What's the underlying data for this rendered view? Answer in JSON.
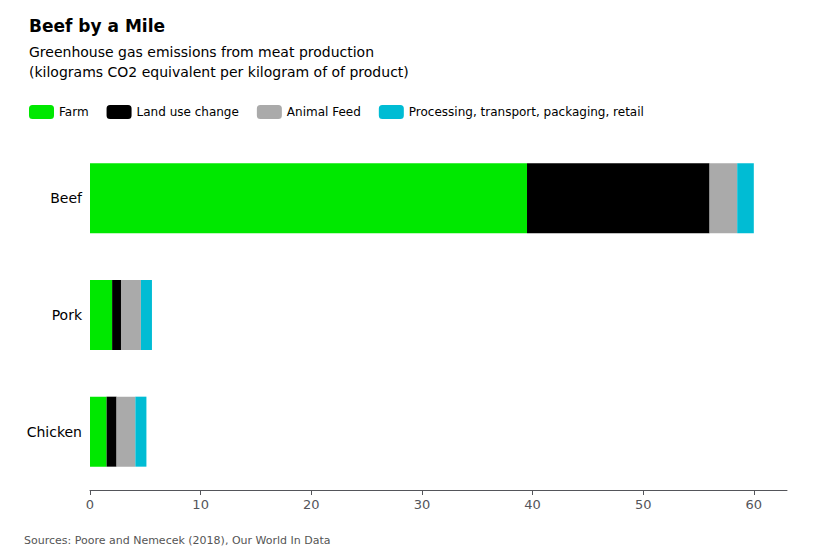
{
  "chart_data": {
    "type": "bar",
    "orientation": "horizontal",
    "stacked": true,
    "title": "Beef by a Mile",
    "subtitle": "Greenhouse gas emissions from meat production\n(kilograms CO2 equivalent per kilogram of of product)",
    "source": "Sources: Poore and Nemecek (2018), Our World In Data",
    "categories": [
      "Beef",
      "Pork",
      "Chicken"
    ],
    "series": [
      {
        "name": "Farm",
        "color": "#00e800",
        "values": [
          39.5,
          2.0,
          1.5
        ]
      },
      {
        "name": "Land use change",
        "color": "#000000",
        "values": [
          16.5,
          0.8,
          0.9
        ]
      },
      {
        "name": "Animal Feed",
        "color": "#aaaaaa",
        "values": [
          2.5,
          1.8,
          1.7
        ]
      },
      {
        "name": "Processing, transport, packaging, retail",
        "color": "#00bcd4",
        "values": [
          1.5,
          1.0,
          1.0
        ]
      }
    ],
    "xlim": [
      0,
      63
    ],
    "xticks": [
      0,
      10,
      20,
      30,
      40,
      50,
      60
    ],
    "grid": false,
    "legend": "upper left"
  }
}
